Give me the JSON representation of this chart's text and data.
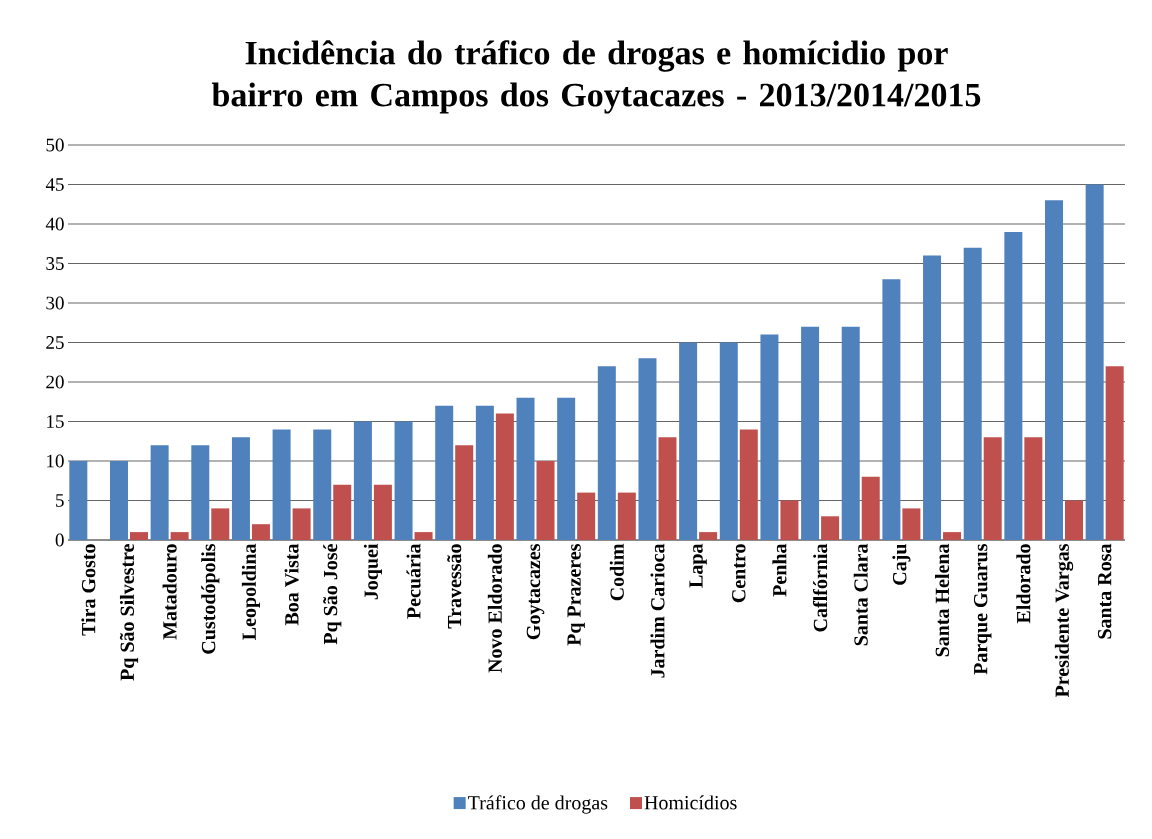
{
  "chart_data": {
    "type": "bar",
    "title": "Incidência do tráfico de drogas e homícidio por bairro em Campos dos Goytacazes - 2013/2014/2015",
    "categories": [
      "Tira Gosto",
      "Pq São Silvestre",
      "Matadouro",
      "Custodópolis",
      "Leopoldina",
      "Boa Vista",
      "Pq São José",
      "Joquei",
      "Pecuária",
      "Travessão",
      "Novo Eldorado",
      "Goytacazes",
      "Pq Prazeres",
      "Codim",
      "Jardim Carioca",
      "Lapa",
      "Centro",
      "Penha",
      "Caflfórnia",
      "Santa Clara",
      "Caju",
      "Santa Helena",
      "Parque Guarus",
      "Eldorado",
      "Presidente Vargas",
      "Santa Rosa"
    ],
    "series": [
      {
        "name": "Tráfico de drogas",
        "color": "#4f81bd",
        "values": [
          10,
          10,
          12,
          12,
          13,
          14,
          14,
          15,
          15,
          17,
          17,
          18,
          18,
          22,
          23,
          25,
          25,
          26,
          27,
          27,
          33,
          36,
          37,
          39,
          43,
          45
        ]
      },
      {
        "name": "Homicídios",
        "color": "#c0504d",
        "values": [
          null,
          1,
          1,
          4,
          2,
          4,
          7,
          7,
          1,
          12,
          16,
          10,
          6,
          6,
          13,
          1,
          14,
          5,
          3,
          8,
          4,
          1,
          13,
          13,
          5,
          22
        ]
      }
    ],
    "ylim": [
      0,
      50
    ],
    "yticks": [
      0,
      5,
      10,
      15,
      20,
      25,
      30,
      35,
      40,
      45,
      50
    ],
    "grid": "y",
    "legend": "bottom"
  }
}
